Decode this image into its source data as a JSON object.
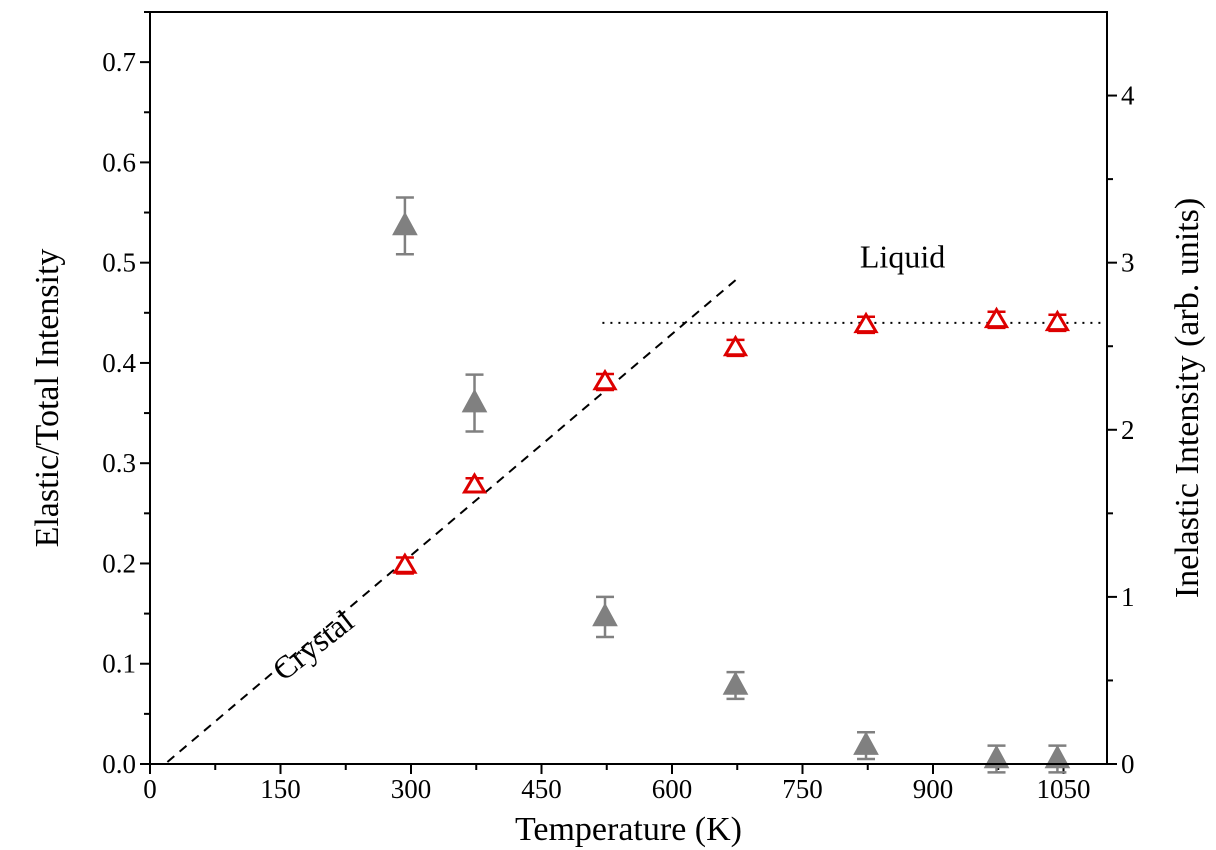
{
  "chart_data": {
    "type": "scatter",
    "title": "",
    "xlabel": "Temperature (K)",
    "ylabel_left": "Elastic/Total Intensity",
    "ylabel_right": "Inelastic Intensity (arb. units)",
    "xlim": [
      0,
      1100
    ],
    "ylim_left": [
      0,
      0.75
    ],
    "ylim_right": [
      0,
      4.5
    ],
    "x_ticks": [
      0,
      150,
      300,
      450,
      600,
      750,
      900,
      1050
    ],
    "y_left_ticks": [
      "0.0",
      "0.1",
      "0.2",
      "0.3",
      "0.4",
      "0.5",
      "0.6",
      "0.7"
    ],
    "y_right_ticks": [
      "0",
      "1",
      "2",
      "3",
      "4"
    ],
    "grid": false,
    "series": [
      {
        "axis": "left",
        "marker": "open-triangle",
        "color": "#dd0000",
        "x": [
          293,
          373,
          523,
          673,
          823,
          973,
          1043
        ],
        "y": [
          0.198,
          0.278,
          0.381,
          0.415,
          0.438,
          0.443,
          0.44
        ],
        "err": [
          0.008,
          0.007,
          0.008,
          0.008,
          0.008,
          0.008,
          0.008
        ]
      },
      {
        "axis": "right",
        "marker": "filled-triangle",
        "color": "#808080",
        "x": [
          293,
          373,
          523,
          673,
          823,
          973,
          1043
        ],
        "y": [
          3.22,
          2.16,
          0.88,
          0.47,
          0.11,
          0.03,
          0.03
        ],
        "err_up": [
          0.17,
          0.17,
          0.12,
          0.08,
          0.08,
          0.08,
          0.08
        ],
        "err_down": [
          0.17,
          0.17,
          0.12,
          0.08,
          0.08,
          0.08,
          0.08
        ]
      }
    ],
    "lines": [
      {
        "style": "dashed",
        "x": [
          20,
          675
        ],
        "y": [
          0.002,
          0.484
        ]
      },
      {
        "style": "dotted",
        "x": [
          520,
          1100
        ],
        "y": [
          0.44,
          0.44
        ]
      }
    ],
    "annotations": [
      {
        "text": "Crystal",
        "x": 195,
        "y": 0.11,
        "rotation": -38
      },
      {
        "text": "Liquid",
        "x": 865,
        "y": 0.495,
        "rotation": 0
      }
    ]
  }
}
